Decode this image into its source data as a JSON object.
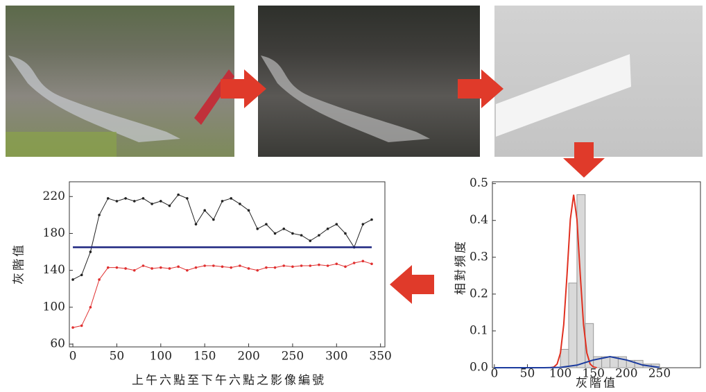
{
  "chart_data": [
    {
      "type": "line",
      "xlabel": "上午六點至下午六點之影像編號",
      "ylabel": "灰階值",
      "x": [
        0,
        10,
        20,
        30,
        40,
        50,
        60,
        70,
        80,
        90,
        100,
        110,
        120,
        130,
        140,
        150,
        160,
        170,
        180,
        190,
        200,
        210,
        220,
        230,
        240,
        250,
        260,
        270,
        280,
        290,
        300,
        310,
        320,
        330,
        340
      ],
      "series": [
        {
          "color": "#222222",
          "values": [
            130,
            135,
            160,
            200,
            218,
            215,
            218,
            215,
            218,
            212,
            215,
            210,
            222,
            218,
            190,
            205,
            195,
            215,
            218,
            212,
            205,
            185,
            190,
            180,
            185,
            180,
            178,
            172,
            178,
            185,
            190,
            180,
            165,
            190,
            195
          ]
        },
        {
          "color": "#e03030",
          "values": [
            78,
            80,
            100,
            130,
            143,
            143,
            142,
            140,
            145,
            142,
            143,
            142,
            144,
            140,
            143,
            145,
            145,
            144,
            143,
            145,
            142,
            140,
            143,
            143,
            145,
            144,
            145,
            145,
            146,
            145,
            147,
            144,
            148,
            150,
            147
          ]
        },
        {
          "color": "#1a237e",
          "values": [
            165,
            165,
            165,
            165,
            165,
            165,
            165,
            165,
            165,
            165,
            165,
            165,
            165,
            165,
            165,
            165,
            165,
            165,
            165,
            165,
            165,
            165,
            165,
            165,
            165,
            165,
            165,
            165,
            165,
            165,
            165,
            165,
            165,
            165,
            165
          ]
        }
      ],
      "xlim": [
        -4,
        355
      ],
      "ylim": [
        57,
        236
      ],
      "xticks": [
        0,
        50,
        100,
        150,
        200,
        250,
        300,
        350
      ],
      "yticks": [
        60,
        100,
        140,
        180,
        220
      ]
    },
    {
      "type": "histogram",
      "xlabel": "灰階值",
      "ylabel": "相對頻度",
      "bins": [
        100,
        112.5,
        125,
        137.5,
        150,
        162.5,
        175,
        187.5,
        200,
        212.5,
        225,
        237.5,
        250
      ],
      "values": [
        0.05,
        0.23,
        0.47,
        0.12,
        0.03,
        0.03,
        0.03,
        0.03,
        0.02,
        0.02,
        0.01,
        0.01
      ],
      "color": "#d9d9d9",
      "curves": [
        {
          "color": "#e03020",
          "x": [
            85,
            90,
            95,
            100,
            105,
            110,
            115,
            120,
            125,
            130,
            135,
            140,
            145,
            150,
            155
          ],
          "values": [
            0,
            0.002,
            0.01,
            0.04,
            0.117,
            0.253,
            0.403,
            0.47,
            0.403,
            0.253,
            0.117,
            0.04,
            0.01,
            0.002,
            0
          ]
        },
        {
          "color": "#1a3a9e",
          "x": [
            0,
            25,
            50,
            75,
            100,
            125,
            150,
            175,
            200,
            225,
            250
          ],
          "values": [
            0,
            0,
            0,
            0,
            0.001,
            0.007,
            0.021,
            0.03,
            0.021,
            0.007,
            0.001
          ]
        }
      ],
      "xlim": [
        -3,
        312
      ],
      "ylim": [
        0,
        0.505
      ],
      "xticks": [
        0,
        50,
        100,
        150,
        200,
        250
      ],
      "yticks": [
        {
          "value": 0,
          "label": "0.0"
        },
        0.1,
        0.2,
        0.3,
        0.4,
        0.5
      ]
    }
  ]
}
